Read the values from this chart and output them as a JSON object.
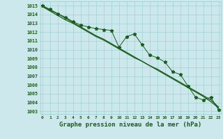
{
  "hours": [
    0,
    1,
    2,
    3,
    4,
    5,
    6,
    7,
    8,
    9,
    10,
    11,
    12,
    13,
    14,
    15,
    16,
    17,
    18,
    19,
    20,
    21,
    22,
    23
  ],
  "pressure_main": [
    1015.0,
    1014.6,
    1014.1,
    1013.7,
    1013.2,
    1012.8,
    1012.6,
    1012.4,
    1012.3,
    1012.2,
    1010.3,
    1011.5,
    1011.8,
    1010.6,
    1009.4,
    1009.1,
    1008.6,
    1007.5,
    1007.2,
    1005.9,
    1004.6,
    1004.3,
    1004.6,
    1003.2
  ],
  "pressure_line1": [
    1014.9,
    1014.4,
    1013.9,
    1013.4,
    1013.0,
    1012.5,
    1012.0,
    1011.5,
    1011.1,
    1010.6,
    1010.1,
    1009.6,
    1009.1,
    1008.7,
    1008.2,
    1007.7,
    1007.2,
    1006.7,
    1006.2,
    1005.7,
    1005.2,
    1004.7,
    1004.1,
    1003.4
  ],
  "pressure_line2": [
    1015.0,
    1014.5,
    1014.1,
    1013.6,
    1013.1,
    1012.6,
    1012.1,
    1011.6,
    1011.2,
    1010.7,
    1010.2,
    1009.7,
    1009.2,
    1008.7,
    1008.2,
    1007.8,
    1007.3,
    1006.8,
    1006.3,
    1005.8,
    1005.3,
    1004.8,
    1004.3,
    1003.5
  ],
  "bg_color": "#cce8ec",
  "grid_color": "#99cccc",
  "line_color": "#1a5c1a",
  "ylabel_min": 1003,
  "ylabel_max": 1015,
  "xlabel_label": "Graphe pression niveau de la mer (hPa)"
}
